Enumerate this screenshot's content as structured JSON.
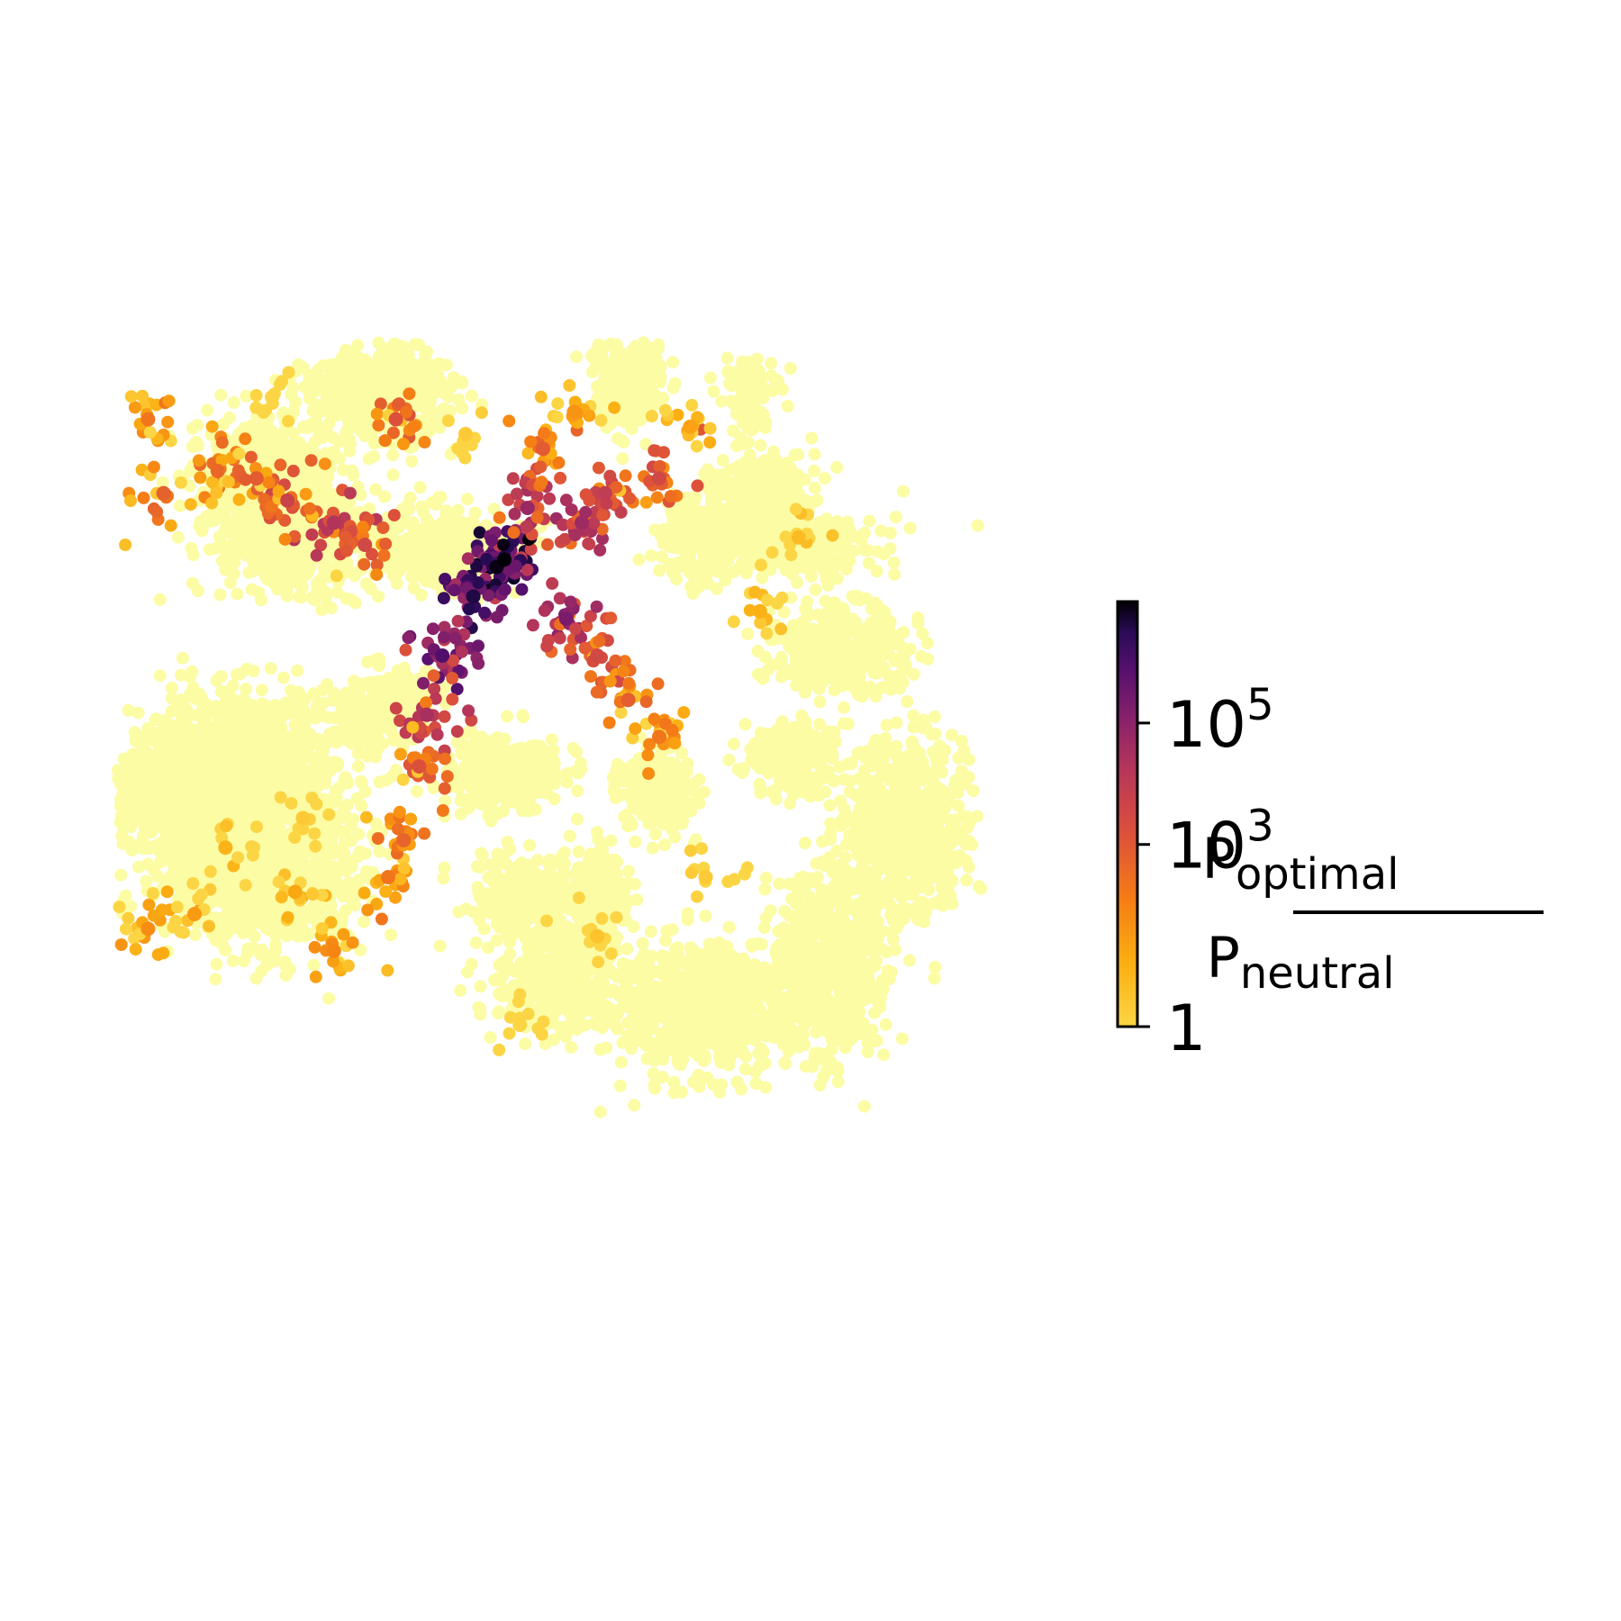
{
  "chart_data": {
    "type": "scatter",
    "title": "",
    "xlabel": "",
    "ylabel": "",
    "axes_visible": false,
    "grid": false,
    "colormap": "inferno (reversed)",
    "color_scale": "log",
    "colorbar": {
      "placement": "right",
      "ticks": [
        {
          "value": 1,
          "label": "1",
          "exp": ""
        },
        {
          "value": 1000,
          "label": "10",
          "exp": "3"
        },
        {
          "value": 100000,
          "label": "10",
          "exp": "5"
        }
      ],
      "range": [
        1,
        10000000
      ],
      "label": {
        "numerator": {
          "base": "P",
          "sub": "optimal"
        },
        "denominator": {
          "base": "P",
          "sub": "neutral"
        }
      }
    },
    "background_color": "#fcfca4",
    "series": [
      {
        "points": [
          {
            "x": 0.14,
            "y": 0.66,
            "c": 8
          },
          {
            "x": 0.1,
            "y": 0.75,
            "c": 30
          },
          {
            "x": 0.04,
            "y": 0.77,
            "c": 60
          },
          {
            "x": 0.23,
            "y": 0.72,
            "c": 15
          },
          {
            "x": 0.28,
            "y": 0.8,
            "c": 80
          },
          {
            "x": 0.35,
            "y": 0.7,
            "c": 200
          },
          {
            "x": 0.37,
            "y": 0.65,
            "c": 500
          },
          {
            "x": 0.39,
            "y": 0.55,
            "c": 1500
          },
          {
            "x": 0.4,
            "y": 0.48,
            "c": 30000
          },
          {
            "x": 0.42,
            "y": 0.4,
            "c": 900000
          },
          {
            "x": 0.46,
            "y": 0.32,
            "c": 4000000
          },
          {
            "x": 0.49,
            "y": 0.28,
            "c": 8000000
          },
          {
            "x": 0.5,
            "y": 0.27,
            "c": 9500000
          },
          {
            "x": 0.53,
            "y": 0.2,
            "c": 60000
          },
          {
            "x": 0.55,
            "y": 0.12,
            "c": 800
          },
          {
            "x": 0.59,
            "y": 0.07,
            "c": 40
          },
          {
            "x": 0.58,
            "y": 0.35,
            "c": 200000
          },
          {
            "x": 0.62,
            "y": 0.4,
            "c": 3000
          },
          {
            "x": 0.66,
            "y": 0.46,
            "c": 700
          },
          {
            "x": 0.7,
            "y": 0.51,
            "c": 200
          },
          {
            "x": 0.6,
            "y": 0.22,
            "c": 50000
          },
          {
            "x": 0.63,
            "y": 0.18,
            "c": 9000
          },
          {
            "x": 0.7,
            "y": 0.16,
            "c": 3000
          },
          {
            "x": 0.74,
            "y": 0.09,
            "c": 20
          },
          {
            "x": 0.88,
            "y": 0.24,
            "c": 5
          },
          {
            "x": 0.83,
            "y": 0.34,
            "c": 10
          },
          {
            "x": 0.28,
            "y": 0.22,
            "c": 20000
          },
          {
            "x": 0.22,
            "y": 0.19,
            "c": 5000
          },
          {
            "x": 0.18,
            "y": 0.16,
            "c": 800
          },
          {
            "x": 0.13,
            "y": 0.15,
            "c": 400
          },
          {
            "x": 0.06,
            "y": 0.18,
            "c": 600
          },
          {
            "x": 0.04,
            "y": 0.08,
            "c": 200
          },
          {
            "x": 0.32,
            "y": 0.25,
            "c": 3000
          },
          {
            "x": 0.45,
            "y": 0.1,
            "c": 2
          },
          {
            "x": 0.36,
            "y": 0.08,
            "c": 1500
          },
          {
            "x": 0.2,
            "y": 0.05,
            "c": 1
          },
          {
            "x": 0.62,
            "y": 0.78,
            "c": 3
          },
          {
            "x": 0.76,
            "y": 0.7,
            "c": 2
          },
          {
            "x": 0.52,
            "y": 0.9,
            "c": 1
          },
          {
            "x": 0.24,
            "y": 0.62,
            "c": 2
          }
        ]
      }
    ]
  }
}
